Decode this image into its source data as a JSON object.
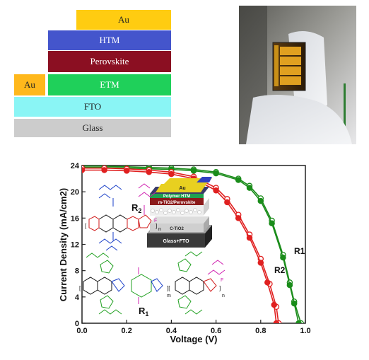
{
  "stack": {
    "layers": [
      {
        "label": "Au",
        "color": "#ffcc11"
      },
      {
        "label": "HTM",
        "color": "#4455cc"
      },
      {
        "label": "Perovskite",
        "color": "#8b0f22"
      },
      {
        "label": "Au",
        "color": "#ffb81c"
      },
      {
        "label": "ETM",
        "color": "#1fd05a"
      },
      {
        "label": "FTO",
        "color": "#8af5f5"
      },
      {
        "label": "Glass",
        "color": "#cccccc"
      }
    ]
  },
  "inset": {
    "layers": [
      "Au",
      "Polymer HTM",
      "m-TiO2/Perovskite",
      "C-TiO2",
      "Glass+FTO"
    ]
  },
  "molecules": {
    "r2_label": "R",
    "r2_sub": "2",
    "r1_label": "R",
    "r1_sub": "1",
    "subscript_n": "n",
    "subscript_m": "m"
  },
  "chart_data": {
    "type": "line",
    "xlabel": "Voltage (V)",
    "ylabel": "Current Density (mA/cm2)",
    "xlim": [
      0.0,
      1.0
    ],
    "ylim": [
      0,
      24
    ],
    "xticks": [
      "0.0",
      "0.2",
      "0.4",
      "0.6",
      "0.8",
      "1.0"
    ],
    "yticks": [
      "0",
      "4",
      "8",
      "12",
      "16",
      "20",
      "24"
    ],
    "series": [
      {
        "name": "R1",
        "color": "#1a8c1a",
        "forward": {
          "x": [
            0.0,
            0.1,
            0.2,
            0.3,
            0.4,
            0.5,
            0.6,
            0.7,
            0.75,
            0.8,
            0.85,
            0.9,
            0.93,
            0.95,
            0.97
          ],
          "y": [
            23.7,
            23.7,
            23.6,
            23.5,
            23.4,
            23.2,
            22.8,
            21.8,
            20.6,
            18.6,
            15.2,
            10.0,
            5.8,
            3.0,
            0.0
          ]
        },
        "reverse": {
          "x": [
            0.0,
            0.1,
            0.2,
            0.3,
            0.4,
            0.5,
            0.6,
            0.7,
            0.75,
            0.8,
            0.85,
            0.9,
            0.93,
            0.95,
            0.98
          ],
          "y": [
            23.9,
            23.9,
            23.8,
            23.7,
            23.6,
            23.4,
            23.0,
            22.0,
            20.9,
            19.0,
            15.6,
            10.4,
            6.2,
            3.3,
            0.0
          ]
        }
      },
      {
        "name": "R2",
        "color": "#e02020",
        "forward": {
          "x": [
            0.0,
            0.1,
            0.2,
            0.3,
            0.4,
            0.5,
            0.6,
            0.65,
            0.7,
            0.75,
            0.8,
            0.83,
            0.86,
            0.87
          ],
          "y": [
            23.3,
            23.3,
            23.2,
            23.0,
            22.7,
            22.0,
            20.2,
            18.4,
            16.0,
            13.0,
            9.2,
            6.2,
            2.8,
            0.0
          ]
        },
        "reverse": {
          "x": [
            0.0,
            0.1,
            0.2,
            0.3,
            0.4,
            0.5,
            0.6,
            0.65,
            0.7,
            0.75,
            0.8,
            0.84,
            0.87,
            0.88
          ],
          "y": [
            23.6,
            23.6,
            23.5,
            23.3,
            23.0,
            22.3,
            20.6,
            18.9,
            16.5,
            13.5,
            9.8,
            6.0,
            2.5,
            0.0
          ]
        }
      }
    ]
  }
}
